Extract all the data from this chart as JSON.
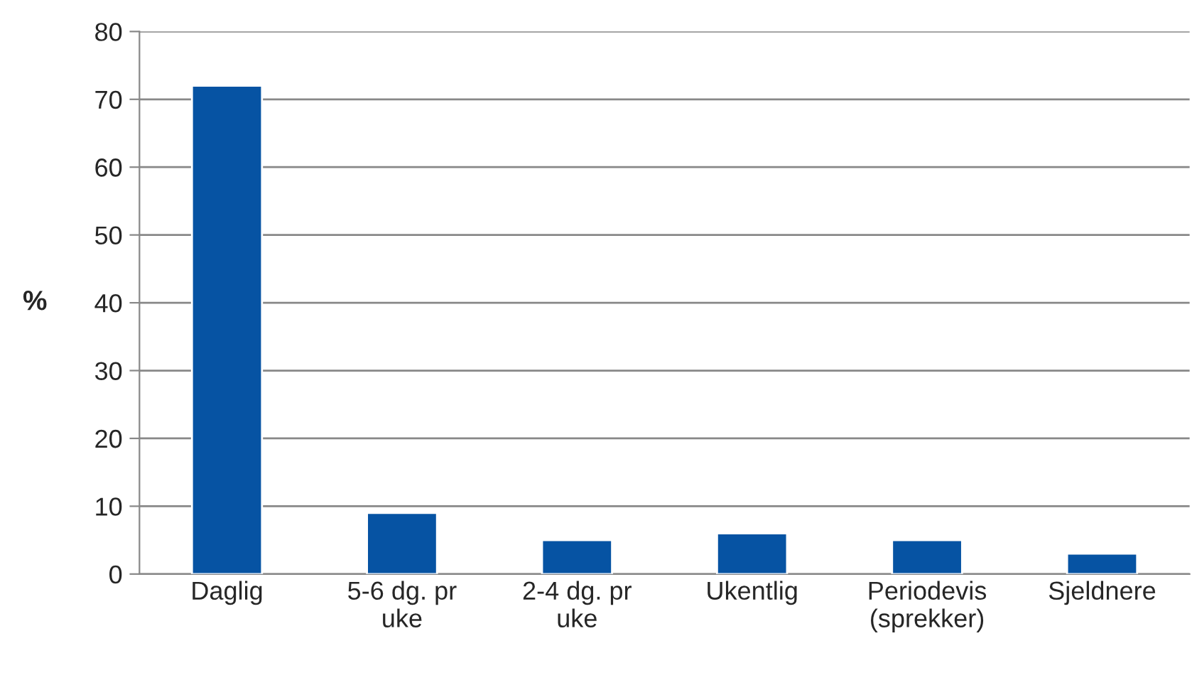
{
  "chart_data": {
    "type": "bar",
    "ylabel": "%",
    "categories": [
      "Daglig",
      "5-6 dg. pr\nuke",
      "2-4 dg. pr\nuke",
      "Ukentlig",
      "Periodevis\n(sprekker)",
      "Sjeldnere"
    ],
    "values": [
      72,
      9,
      5,
      6,
      5,
      3
    ],
    "color": "#0653a3",
    "ylim": [
      0,
      80
    ],
    "yticks": [
      0,
      10,
      20,
      30,
      40,
      50,
      60,
      70,
      80
    ],
    "grid": "y",
    "legend": false
  }
}
